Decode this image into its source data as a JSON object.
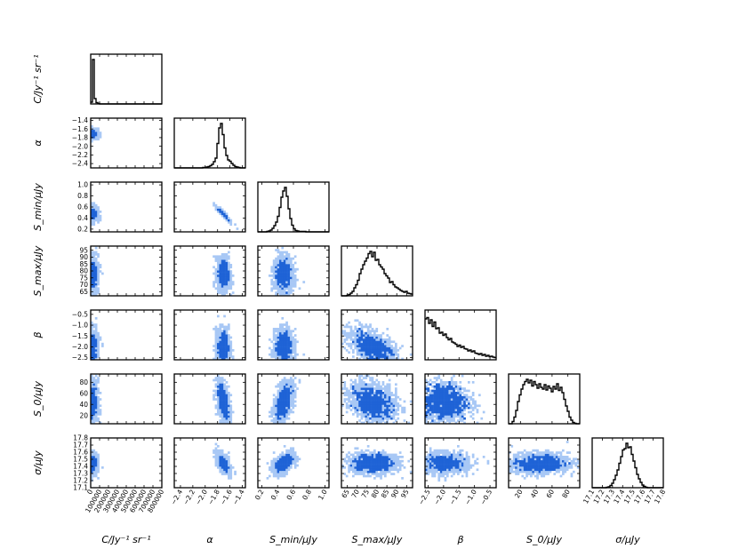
{
  "chart_data": {
    "type": "scatter",
    "subtype": "corner-plot",
    "title": "",
    "grid": false,
    "colors": {
      "density_light": "#a8c8f5",
      "density_dark": "#1f63d6",
      "histogram": "#000000",
      "frame": "#000000"
    },
    "parameters": [
      {
        "key": "C",
        "label": "C/Jy⁻¹ sr⁻¹",
        "range": [
          0,
          800000
        ],
        "ticks": [
          0,
          100000,
          200000,
          300000,
          400000,
          500000,
          600000,
          700000,
          800000
        ],
        "tick_labels": [
          "0",
          "100000",
          "200000",
          "300000",
          "400000",
          "500000",
          "600000",
          "700000",
          "800000"
        ],
        "mean": 15000,
        "sd": 30000,
        "hist": [
          0.04,
          1.0,
          0.12,
          0.03,
          0.01,
          0.0,
          0.0,
          0.0,
          0.0,
          0.0,
          0.0,
          0.0,
          0.0,
          0.0,
          0.0,
          0.0,
          0.0,
          0.0,
          0.0,
          0.0,
          0.0,
          0.0,
          0.0,
          0.0,
          0.0,
          0.0,
          0.0,
          0.0,
          0.0,
          0.0,
          0.0,
          0.0,
          0.0,
          0.0,
          0.0,
          0.0,
          0.0,
          0.0,
          0.0,
          0.0
        ]
      },
      {
        "key": "alpha",
        "label": "α",
        "range": [
          -2.5,
          -1.35
        ],
        "ticks": [
          -2.4,
          -2.2,
          -2.0,
          -1.8,
          -1.6,
          -1.4
        ],
        "tick_labels": [
          "−2.4",
          "−2.2",
          "−2.0",
          "−1.8",
          "−1.6",
          "−1.4"
        ],
        "mean": -1.7,
        "sd": 0.05,
        "hist": [
          0.0,
          0.0,
          0.0,
          0.0,
          0.0,
          0.0,
          0.0,
          0.0,
          0.0,
          0.0,
          0.0,
          0.0,
          0.0,
          0.0,
          0.0,
          0.0,
          0.01,
          0.01,
          0.02,
          0.03,
          0.05,
          0.08,
          0.14,
          0.22,
          0.55,
          0.9,
          1.0,
          0.75,
          0.45,
          0.28,
          0.18,
          0.15,
          0.1,
          0.06,
          0.03,
          0.02,
          0.01,
          0.0,
          0.0,
          0.0
        ]
      },
      {
        "key": "Smin",
        "label": "S_min/μJy",
        "range": [
          0.15,
          1.05
        ],
        "ticks": [
          0.2,
          0.4,
          0.6,
          0.8,
          1.0
        ],
        "tick_labels": [
          "0.2",
          "0.4",
          "0.6",
          "0.8",
          "1.0"
        ],
        "mean": 0.48,
        "sd": 0.06,
        "hist": [
          0.0,
          0.0,
          0.0,
          0.0,
          0.0,
          0.01,
          0.02,
          0.04,
          0.08,
          0.14,
          0.22,
          0.35,
          0.55,
          0.78,
          0.92,
          1.0,
          0.8,
          0.52,
          0.3,
          0.15,
          0.07,
          0.03,
          0.02,
          0.01,
          0.01,
          0.01,
          0.01,
          0.0,
          0.0,
          0.0,
          0.0,
          0.0,
          0.0,
          0.0,
          0.0,
          0.0,
          0.0,
          0.0,
          0.0,
          0.0
        ]
      },
      {
        "key": "Smax",
        "label": "S_max/μJy",
        "range": [
          62,
          98
        ],
        "ticks": [
          65,
          70,
          75,
          80,
          85,
          90,
          95
        ],
        "tick_labels": [
          "65",
          "70",
          "75",
          "80",
          "85",
          "90",
          "95"
        ],
        "mean": 78,
        "sd": 6,
        "hist": [
          0.0,
          0.0,
          0.0,
          0.01,
          0.03,
          0.06,
          0.1,
          0.18,
          0.25,
          0.35,
          0.5,
          0.6,
          0.7,
          0.78,
          0.85,
          0.95,
          1.0,
          0.88,
          0.98,
          0.8,
          0.82,
          0.7,
          0.65,
          0.6,
          0.5,
          0.45,
          0.4,
          0.3,
          0.32,
          0.25,
          0.2,
          0.18,
          0.15,
          0.12,
          0.1,
          0.08,
          0.1,
          0.06,
          0.05,
          0.04
        ]
      },
      {
        "key": "beta",
        "label": "β",
        "range": [
          -2.6,
          -0.3
        ],
        "ticks": [
          -2.5,
          -2.0,
          -1.5,
          -1.0,
          -0.5
        ],
        "tick_labels": [
          "−2.5",
          "−2.0",
          "−1.5",
          "−1.0",
          "−0.5"
        ],
        "mean": -2.0,
        "sd": 0.4,
        "hist": [
          0.92,
          0.95,
          0.82,
          0.9,
          0.75,
          0.85,
          0.7,
          0.72,
          0.6,
          0.62,
          0.55,
          0.58,
          0.5,
          0.45,
          0.48,
          0.4,
          0.38,
          0.35,
          0.3,
          0.33,
          0.28,
          0.3,
          0.25,
          0.24,
          0.2,
          0.22,
          0.18,
          0.2,
          0.15,
          0.14,
          0.12,
          0.14,
          0.1,
          0.12,
          0.08,
          0.1,
          0.07,
          0.08,
          0.06,
          0.05
        ]
      },
      {
        "key": "S0",
        "label": "S_0/μJy",
        "range": [
          5,
          95
        ],
        "ticks": [
          20,
          40,
          60,
          80
        ],
        "tick_labels": [
          "20",
          "40",
          "60",
          "80"
        ],
        "mean": 45,
        "sd": 18,
        "hist": [
          0.0,
          0.0,
          0.05,
          0.15,
          0.3,
          0.5,
          0.65,
          0.78,
          0.88,
          0.95,
          1.0,
          0.92,
          0.98,
          0.85,
          0.95,
          0.88,
          0.8,
          0.9,
          0.82,
          0.78,
          0.88,
          0.76,
          0.85,
          0.8,
          0.72,
          0.84,
          0.78,
          0.9,
          0.75,
          0.82,
          0.7,
          0.55,
          0.4,
          0.28,
          0.15,
          0.08,
          0.03,
          0.01,
          0.0,
          0.0
        ]
      },
      {
        "key": "sigma",
        "label": "σ/μJy",
        "range": [
          17.1,
          17.8
        ],
        "ticks": [
          17.1,
          17.2,
          17.3,
          17.4,
          17.5,
          17.6,
          17.7,
          17.8
        ],
        "tick_labels": [
          "17.1",
          "17.2",
          "17.3",
          "17.4",
          "17.5",
          "17.6",
          "17.7",
          "17.8"
        ],
        "mean": 17.45,
        "sd": 0.07,
        "hist": [
          0.0,
          0.0,
          0.0,
          0.0,
          0.0,
          0.0,
          0.0,
          0.0,
          0.01,
          0.02,
          0.05,
          0.1,
          0.18,
          0.28,
          0.4,
          0.55,
          0.7,
          0.85,
          0.88,
          1.0,
          0.9,
          0.92,
          0.75,
          0.6,
          0.45,
          0.3,
          0.2,
          0.12,
          0.06,
          0.03,
          0.01,
          0.0,
          0.0,
          0.0,
          0.0,
          0.0,
          0.0,
          0.0,
          0.0,
          0.0
        ]
      }
    ],
    "correlations": {
      "alpha|Smin": -0.97,
      "alpha|S0": -0.5,
      "alpha|sigma": -0.6,
      "Smin|S0": 0.55,
      "Smin|sigma": 0.5,
      "Smax|beta": -0.55,
      "Smax|S0": -0.3
    }
  }
}
